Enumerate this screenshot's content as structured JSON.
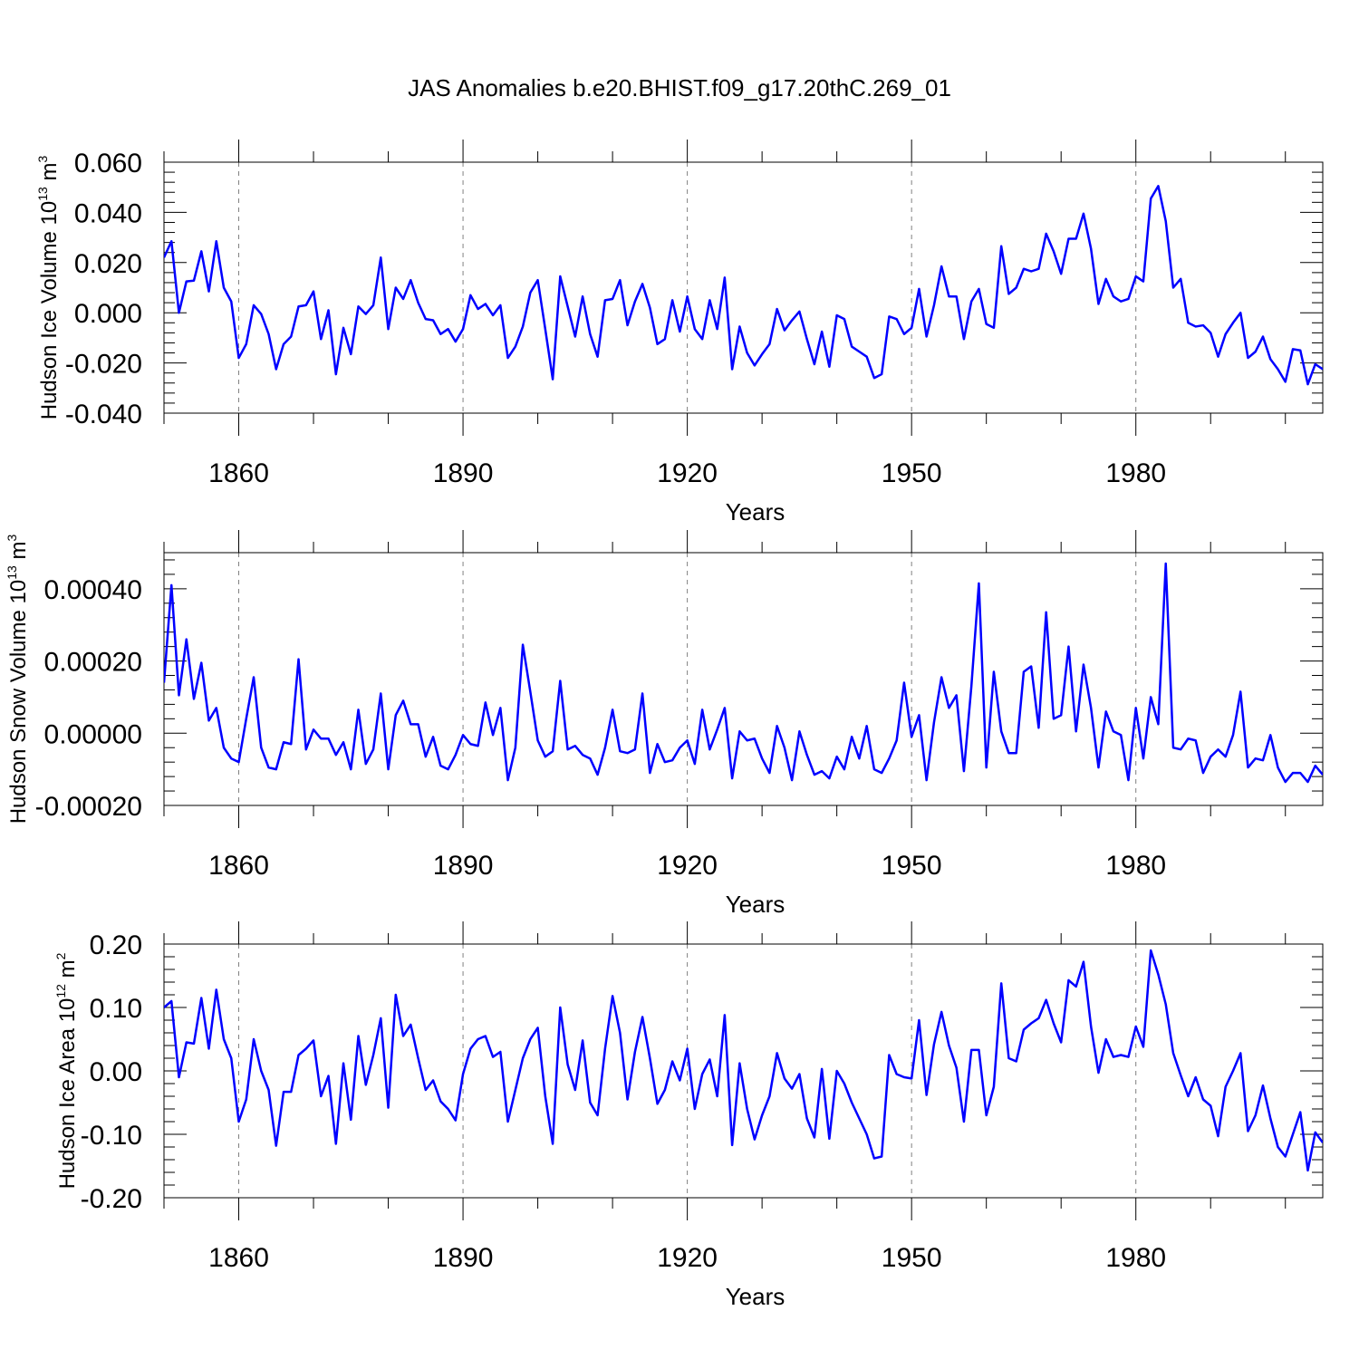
{
  "title": "JAS Anomalies b.e20.BHIST.f09_g17.20thC.269_01",
  "colors": {
    "line": "#0000ff",
    "axis": "#000000",
    "grid": "#808080"
  },
  "chart_data": [
    {
      "type": "line",
      "name": "ice-volume",
      "ylabel": {
        "main": "Hudson Ice Volume 10",
        "sup": "13",
        "unit": " m",
        "unit_sup": "3"
      },
      "xlabel": "Years",
      "xlim": [
        1850,
        2005
      ],
      "ylim": [
        -0.04,
        0.06
      ],
      "yticks": [
        -0.04,
        -0.02,
        0.0,
        0.02,
        0.04,
        0.06
      ],
      "ytick_labels": [
        "-0.040",
        "-0.020",
        "0.000",
        "0.020",
        "0.040",
        "0.060"
      ],
      "xticks": [
        1860,
        1890,
        1920,
        1950,
        1980
      ],
      "xtick_labels": [
        "1860",
        "1890",
        "1920",
        "1950",
        "1980"
      ],
      "x_start": 1850,
      "values": [
        0.022,
        0.0285,
        0.0,
        0.0125,
        0.0128,
        0.0245,
        0.0085,
        0.0285,
        0.01,
        0.0045,
        -0.018,
        -0.0125,
        0.003,
        -0.0005,
        -0.0085,
        -0.0225,
        -0.0125,
        -0.0095,
        0.0025,
        0.003,
        0.0085,
        -0.0105,
        0.001,
        -0.0245,
        -0.006,
        -0.0165,
        0.0025,
        -0.0005,
        0.003,
        0.022,
        -0.0065,
        0.01,
        0.0055,
        0.013,
        0.004,
        -0.0025,
        -0.003,
        -0.0085,
        -0.0065,
        -0.0115,
        -0.0065,
        0.007,
        0.0015,
        0.0035,
        -0.001,
        0.003,
        -0.018,
        -0.0135,
        -0.0055,
        0.008,
        0.013,
        -0.0065,
        -0.0265,
        0.0145,
        0.0025,
        -0.0095,
        0.0065,
        -0.0085,
        -0.0175,
        0.005,
        0.0055,
        0.013,
        -0.005,
        0.0045,
        0.0115,
        0.002,
        -0.0125,
        -0.0105,
        0.005,
        -0.0075,
        0.0065,
        -0.0065,
        -0.0105,
        0.005,
        -0.0065,
        0.014,
        -0.0225,
        -0.0055,
        -0.016,
        -0.021,
        -0.0165,
        -0.0125,
        0.0015,
        -0.007,
        -0.003,
        0.0005,
        -0.0105,
        -0.0205,
        -0.0075,
        -0.0215,
        -0.001,
        -0.0025,
        -0.0135,
        -0.0155,
        -0.0175,
        -0.026,
        -0.0245,
        -0.0015,
        -0.0025,
        -0.0085,
        -0.006,
        0.0095,
        -0.0095,
        0.003,
        0.0185,
        0.0065,
        0.0065,
        -0.0105,
        0.0045,
        0.0095,
        -0.0045,
        -0.006,
        0.0265,
        0.0075,
        0.01,
        0.0175,
        0.0165,
        0.0175,
        0.0315,
        0.0245,
        0.0155,
        0.0295,
        0.0295,
        0.0395,
        0.0255,
        0.0035,
        0.0135,
        0.0065,
        0.0045,
        0.0055,
        0.0145,
        0.0125,
        0.0455,
        0.0505,
        0.0365,
        0.01,
        0.0135,
        -0.004,
        -0.0055,
        -0.005,
        -0.008,
        -0.0175,
        -0.0085,
        -0.004,
        0.0,
        -0.018,
        -0.0155,
        -0.0095,
        -0.0185,
        -0.0225,
        -0.0275,
        -0.0145,
        -0.015,
        -0.0285,
        -0.0205,
        -0.0225
      ]
    },
    {
      "type": "line",
      "name": "snow-volume",
      "ylabel": {
        "main": "Hudson Snow Volume 10",
        "sup": "13",
        "unit": " m",
        "unit_sup": "3"
      },
      "xlabel": "Years",
      "xlim": [
        1850,
        2005
      ],
      "ylim": [
        -0.0002,
        0.0005
      ],
      "yticks": [
        -0.0002,
        0.0,
        0.0002,
        0.0004
      ],
      "ytick_labels": [
        "-0.00020",
        "0.00000",
        "0.00020",
        "0.00040"
      ],
      "xticks": [
        1860,
        1890,
        1920,
        1950,
        1980
      ],
      "xtick_labels": [
        "1860",
        "1890",
        "1920",
        "1950",
        "1980"
      ],
      "x_start": 1850,
      "values": [
        0.00014,
        0.00041,
        0.000105,
        0.00026,
        9.5e-05,
        0.000195,
        3.5e-05,
        7e-05,
        -4e-05,
        -7e-05,
        -8e-05,
        4e-05,
        0.000155,
        -4e-05,
        -9.5e-05,
        -0.0001,
        -2.5e-05,
        -3e-05,
        0.000205,
        -4.5e-05,
        1e-05,
        -1.5e-05,
        -1.5e-05,
        -6e-05,
        -2.5e-05,
        -0.0001,
        6.5e-05,
        -8.5e-05,
        -4.5e-05,
        0.00011,
        -0.0001,
        5e-05,
        9e-05,
        2.5e-05,
        2.5e-05,
        -6.5e-05,
        -1e-05,
        -9e-05,
        -0.0001,
        -6e-05,
        -5e-06,
        -3e-05,
        -3.5e-05,
        8.5e-05,
        -5e-06,
        7e-05,
        -0.00013,
        -4e-05,
        0.000245,
        0.000115,
        -2e-05,
        -6.5e-05,
        -5e-05,
        0.000145,
        -4.5e-05,
        -3.5e-05,
        -6e-05,
        -7e-05,
        -0.000115,
        -4e-05,
        6.5e-05,
        -5e-05,
        -5.5e-05,
        -4.5e-05,
        0.00011,
        -0.00011,
        -3e-05,
        -8e-05,
        -7.5e-05,
        -4e-05,
        -2e-05,
        -8.5e-05,
        6.5e-05,
        -4.5e-05,
        1e-05,
        7e-05,
        -0.000125,
        5e-06,
        -2e-05,
        -1.5e-05,
        -7e-05,
        -0.00011,
        2e-05,
        -4e-05,
        -0.00013,
        5e-06,
        -6e-05,
        -0.000115,
        -0.000105,
        -0.000125,
        -6.5e-05,
        -0.0001,
        -1e-05,
        -7e-05,
        2e-05,
        -0.0001,
        -0.00011,
        -7e-05,
        -2e-05,
        0.00014,
        -1e-05,
        5e-05,
        -0.00013,
        3e-05,
        0.000155,
        7e-05,
        0.000105,
        -0.000105,
        0.00013,
        0.000415,
        -9.5e-05,
        0.00017,
        5e-06,
        -5.5e-05,
        -5.5e-05,
        0.00017,
        0.000185,
        1.5e-05,
        0.000335,
        4e-05,
        5e-05,
        0.00024,
        5e-06,
        0.00019,
        7e-05,
        -9.5e-05,
        6e-05,
        5e-06,
        -5e-06,
        -0.00013,
        7e-05,
        -7e-05,
        0.0001,
        2.5e-05,
        0.00047,
        -4e-05,
        -4.5e-05,
        -1.5e-05,
        -2e-05,
        -0.00011,
        -6.5e-05,
        -4.5e-05,
        -6.5e-05,
        -5e-06,
        0.000115,
        -9.5e-05,
        -7e-05,
        -7.5e-05,
        -5e-06,
        -9.5e-05,
        -0.000135,
        -0.00011,
        -0.00011,
        -0.000135,
        -9e-05,
        -0.000115
      ]
    },
    {
      "type": "line",
      "name": "ice-area",
      "ylabel": {
        "main": "Hudson Ice Area 10",
        "sup": "12",
        "unit": " m",
        "unit_sup": "2"
      },
      "xlabel": "Years",
      "xlim": [
        1850,
        2005
      ],
      "ylim": [
        -0.2,
        0.2
      ],
      "yticks": [
        -0.2,
        -0.1,
        0.0,
        0.1,
        0.2
      ],
      "ytick_labels": [
        "-0.20",
        "-0.10",
        "0.00",
        "0.10",
        "0.20"
      ],
      "xticks": [
        1860,
        1890,
        1920,
        1950,
        1980
      ],
      "xtick_labels": [
        "1860",
        "1890",
        "1920",
        "1950",
        "1980"
      ],
      "x_start": 1850,
      "values": [
        0.1,
        0.11,
        -0.01,
        0.045,
        0.043,
        0.115,
        0.035,
        0.128,
        0.05,
        0.02,
        -0.08,
        -0.045,
        0.05,
        0.0,
        -0.03,
        -0.118,
        -0.033,
        -0.033,
        0.025,
        0.035,
        0.048,
        -0.04,
        -0.008,
        -0.115,
        0.012,
        -0.077,
        0.055,
        -0.022,
        0.025,
        0.083,
        -0.058,
        0.12,
        0.055,
        0.073,
        0.02,
        -0.03,
        -0.015,
        -0.048,
        -0.06,
        -0.078,
        -0.005,
        0.035,
        0.05,
        0.055,
        0.022,
        0.03,
        -0.08,
        -0.03,
        0.02,
        0.05,
        0.068,
        -0.04,
        -0.115,
        0.1,
        0.01,
        -0.03,
        0.048,
        -0.05,
        -0.07,
        0.035,
        0.118,
        0.06,
        -0.045,
        0.03,
        0.085,
        0.02,
        -0.052,
        -0.03,
        0.015,
        -0.015,
        0.035,
        -0.06,
        -0.005,
        0.018,
        -0.04,
        0.088,
        -0.117,
        0.012,
        -0.06,
        -0.108,
        -0.07,
        -0.04,
        0.028,
        -0.012,
        -0.028,
        -0.005,
        -0.075,
        -0.105,
        0.003,
        -0.107,
        0.0,
        -0.02,
        -0.05,
        -0.075,
        -0.1,
        -0.138,
        -0.135,
        0.025,
        -0.005,
        -0.01,
        -0.012,
        0.08,
        -0.038,
        0.042,
        0.093,
        0.04,
        0.005,
        -0.08,
        0.033,
        0.033,
        -0.07,
        -0.025,
        0.138,
        0.02,
        0.015,
        0.065,
        0.075,
        0.083,
        0.112,
        0.075,
        0.045,
        0.143,
        0.133,
        0.172,
        0.07,
        -0.003,
        0.05,
        0.022,
        0.025,
        0.022,
        0.07,
        0.038,
        0.19,
        0.152,
        0.105,
        0.028,
        -0.007,
        -0.04,
        -0.01,
        -0.045,
        -0.055,
        -0.103,
        -0.025,
        0.0,
        0.028,
        -0.095,
        -0.07,
        -0.023,
        -0.075,
        -0.12,
        -0.135,
        -0.1,
        -0.065,
        -0.157,
        -0.097,
        -0.113
      ]
    }
  ]
}
